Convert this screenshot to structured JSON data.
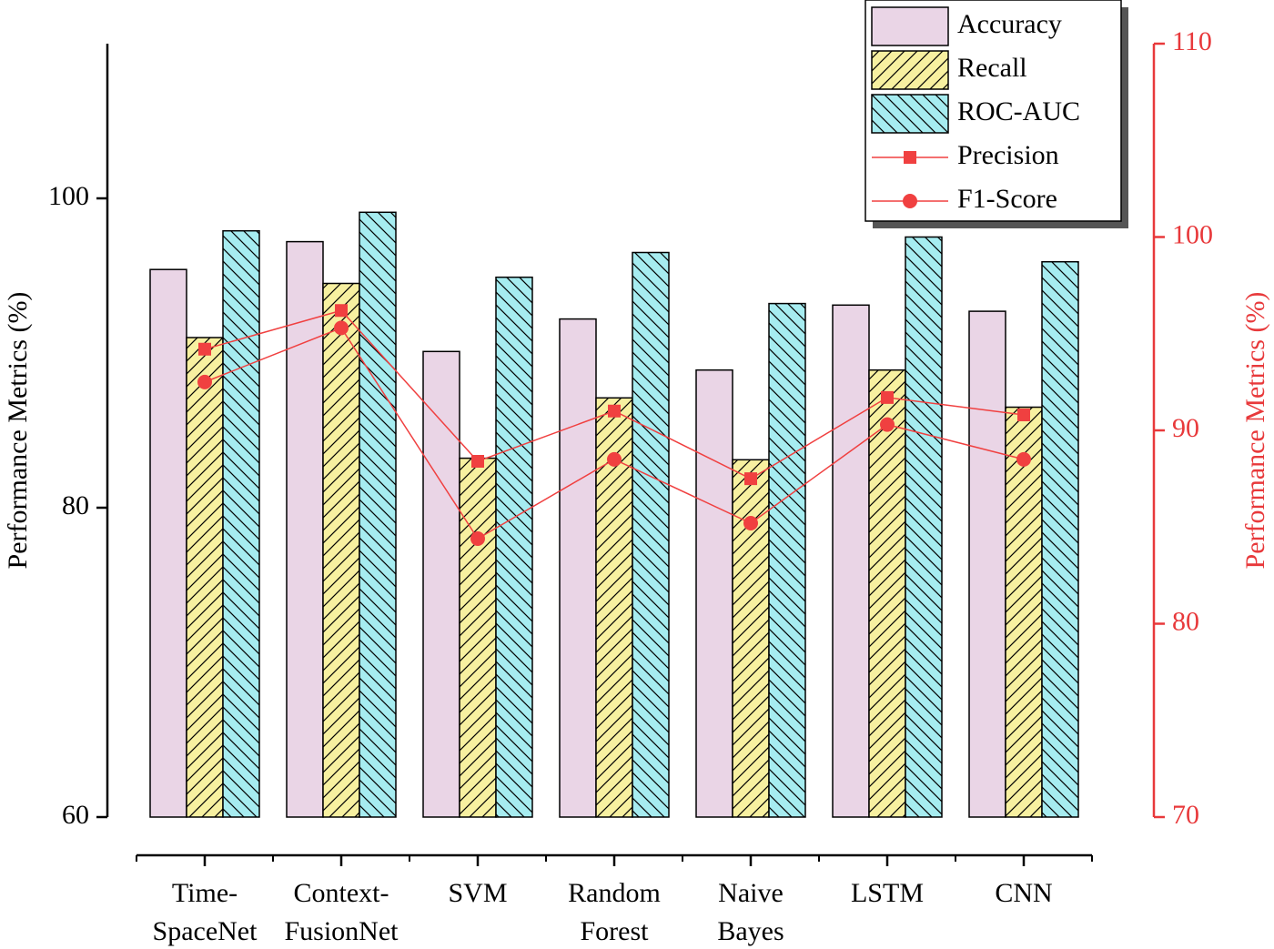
{
  "chart_data": {
    "type": "bar-line",
    "categories": [
      "Time-\nSpaceNet",
      "Context-\nFusionNet",
      "SVM",
      "Random\nForest",
      "Naive\nBayes",
      "LSTM",
      "CNN"
    ],
    "y_label": "Performance Metrics (%)",
    "y2_label": "Performance Metrics (%)",
    "ylim": [
      60,
      110
    ],
    "yticks": [
      60,
      80,
      100
    ],
    "y2lim": [
      70,
      110
    ],
    "y2ticks": [
      70,
      80,
      90,
      100,
      110
    ],
    "y2_color": "#e8393b",
    "series": [
      {
        "name": "Accuracy",
        "type": "bar",
        "color": "#ead5e6",
        "hatch": null,
        "values": [
          95.4,
          97.2,
          90.1,
          92.2,
          88.9,
          93.1,
          92.7
        ]
      },
      {
        "name": "Recall",
        "type": "bar",
        "color": "#f7f0a0",
        "hatch": "/",
        "values": [
          91.0,
          94.5,
          83.2,
          87.1,
          83.1,
          88.9,
          86.5
        ]
      },
      {
        "name": "ROC-AUC",
        "type": "bar",
        "color": "#a6ecf0",
        "hatch": "\\",
        "values": [
          97.9,
          99.1,
          94.9,
          96.5,
          93.2,
          97.5,
          95.9
        ]
      },
      {
        "name": "Precision",
        "type": "line",
        "marker": "square",
        "axis": "y2",
        "color": "#f04040",
        "values": [
          94.2,
          96.2,
          88.4,
          91.0,
          87.5,
          91.7,
          90.8
        ]
      },
      {
        "name": "F1-Score",
        "type": "line",
        "marker": "circle",
        "axis": "y2",
        "color": "#f04040",
        "values": [
          92.5,
          95.3,
          84.4,
          88.5,
          85.2,
          90.3,
          88.5
        ]
      }
    ]
  }
}
